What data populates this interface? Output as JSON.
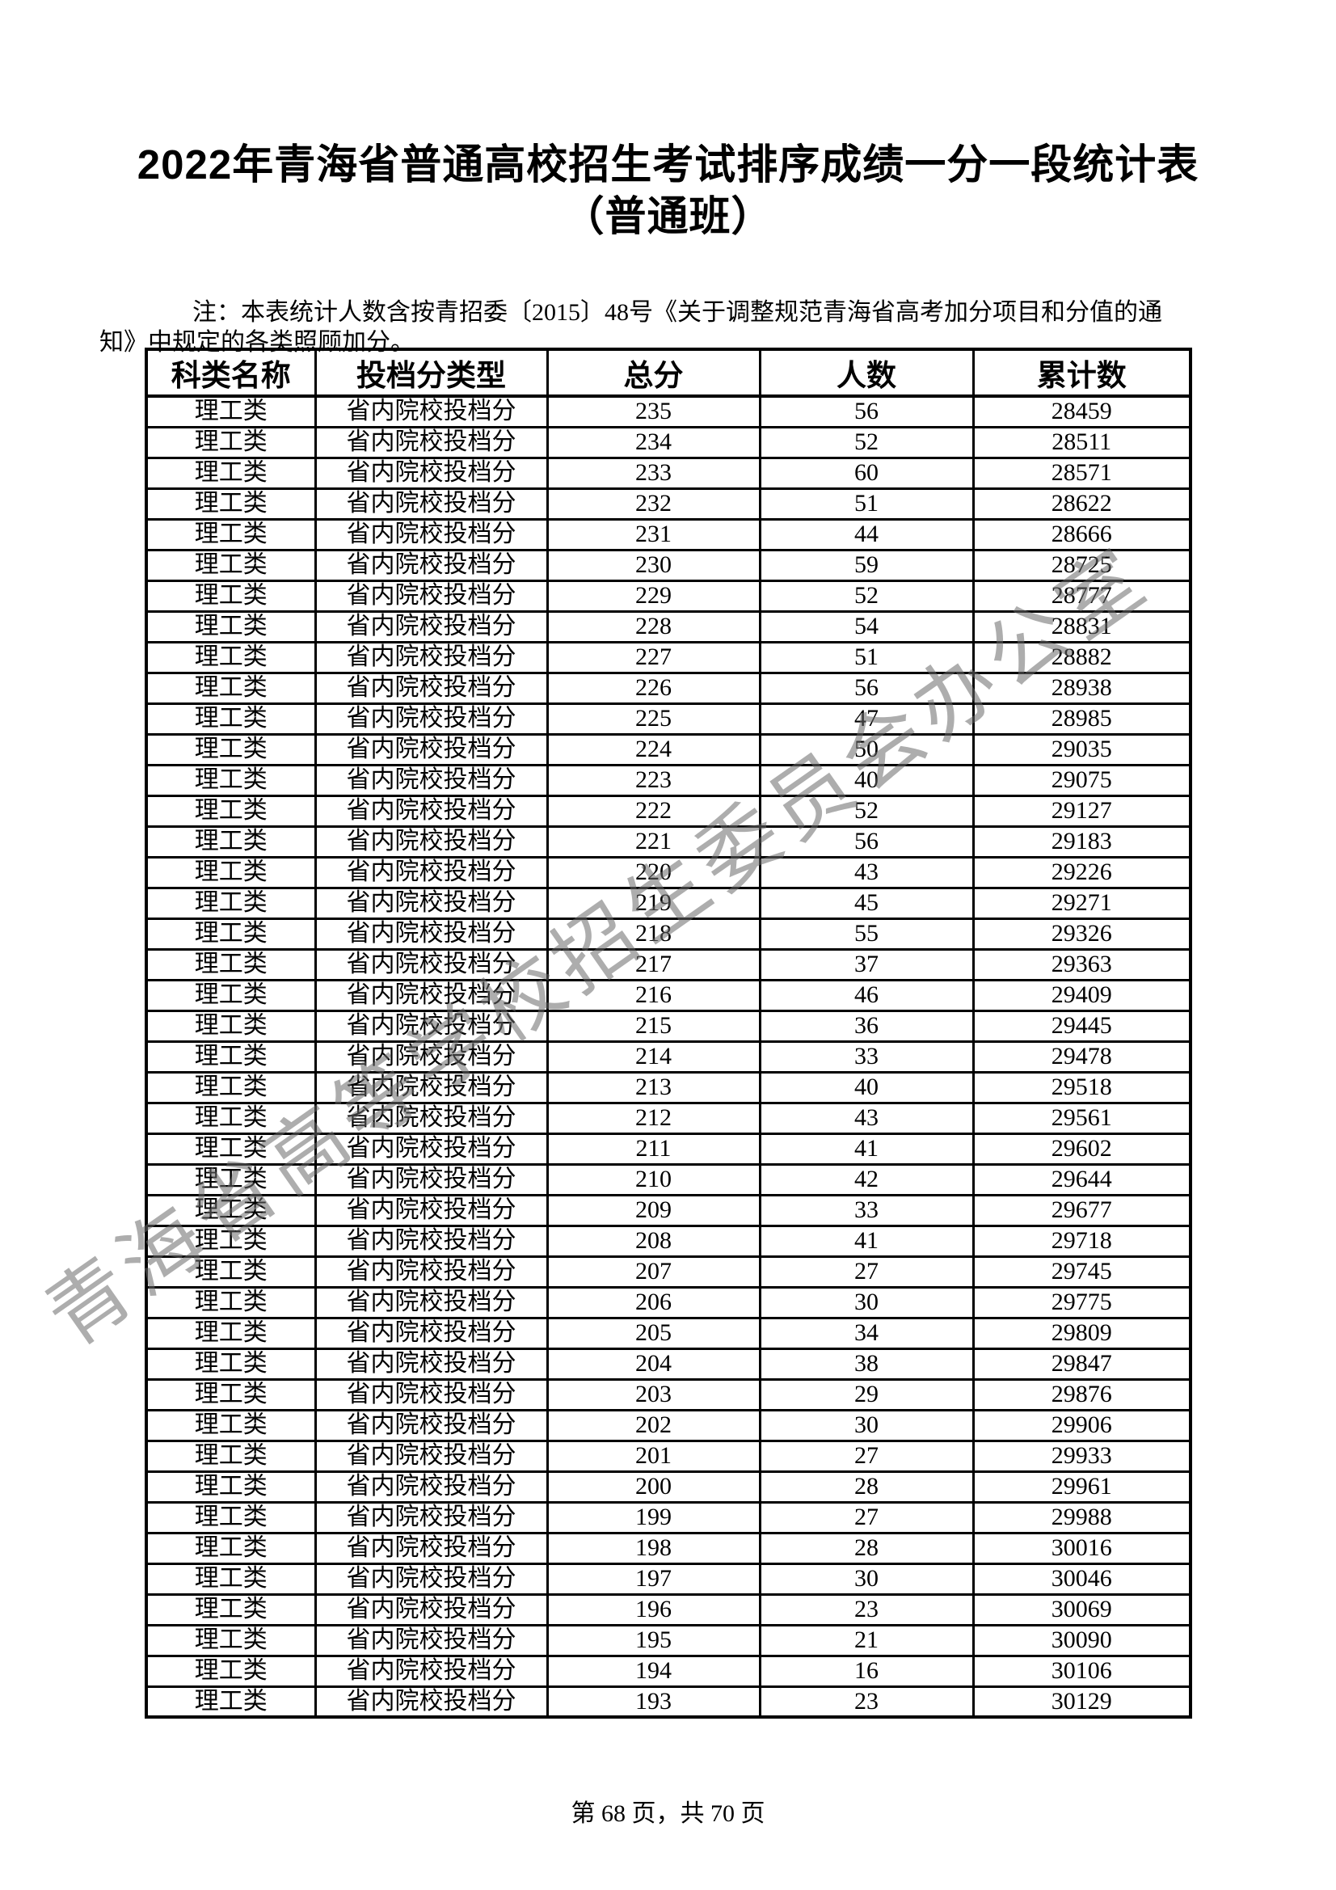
{
  "page": {
    "title_line1": "2022年青海省普通高校招生考试排序成绩一分一段统计表",
    "title_line2": "（普通班）",
    "note": "注：本表统计人数含按青招委〔2015〕48号《关于调整规范青海省高考加分项目和分值的通知》中规定的各类照顾加分。",
    "watermark": "青海省高等学校招生委员会办公室",
    "footer": "第 68 页，共 70 页"
  },
  "table": {
    "headers": [
      "科类名称",
      "投档分类型",
      "总分",
      "人数",
      "累计数"
    ],
    "category": "理工类",
    "score_type": "省内院校投档分",
    "rows": [
      [
        235,
        56,
        28459
      ],
      [
        234,
        52,
        28511
      ],
      [
        233,
        60,
        28571
      ],
      [
        232,
        51,
        28622
      ],
      [
        231,
        44,
        28666
      ],
      [
        230,
        59,
        28725
      ],
      [
        229,
        52,
        28777
      ],
      [
        228,
        54,
        28831
      ],
      [
        227,
        51,
        28882
      ],
      [
        226,
        56,
        28938
      ],
      [
        225,
        47,
        28985
      ],
      [
        224,
        50,
        29035
      ],
      [
        223,
        40,
        29075
      ],
      [
        222,
        52,
        29127
      ],
      [
        221,
        56,
        29183
      ],
      [
        220,
        43,
        29226
      ],
      [
        219,
        45,
        29271
      ],
      [
        218,
        55,
        29326
      ],
      [
        217,
        37,
        29363
      ],
      [
        216,
        46,
        29409
      ],
      [
        215,
        36,
        29445
      ],
      [
        214,
        33,
        29478
      ],
      [
        213,
        40,
        29518
      ],
      [
        212,
        43,
        29561
      ],
      [
        211,
        41,
        29602
      ],
      [
        210,
        42,
        29644
      ],
      [
        209,
        33,
        29677
      ],
      [
        208,
        41,
        29718
      ],
      [
        207,
        27,
        29745
      ],
      [
        206,
        30,
        29775
      ],
      [
        205,
        34,
        29809
      ],
      [
        204,
        38,
        29847
      ],
      [
        203,
        29,
        29876
      ],
      [
        202,
        30,
        29906
      ],
      [
        201,
        27,
        29933
      ],
      [
        200,
        28,
        29961
      ],
      [
        199,
        27,
        29988
      ],
      [
        198,
        28,
        30016
      ],
      [
        197,
        30,
        30046
      ],
      [
        196,
        23,
        30069
      ],
      [
        195,
        21,
        30090
      ],
      [
        194,
        16,
        30106
      ],
      [
        193,
        23,
        30129
      ]
    ]
  }
}
